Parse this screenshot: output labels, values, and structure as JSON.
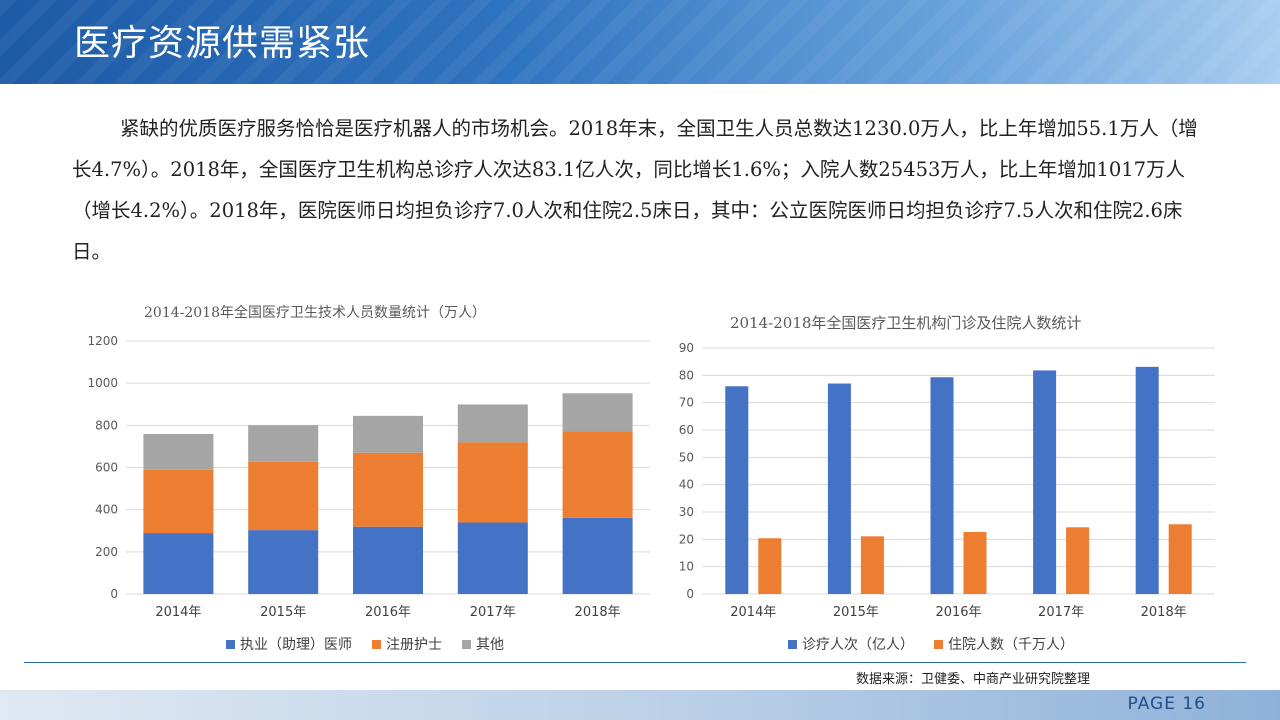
{
  "header": {
    "title": "医疗资源供需紧张"
  },
  "paragraph": "紧缺的优质医疗服务恰恰是医疗机器人的市场机会。2018年末，全国卫生人员总数达1230.0万人，比上年增加55.1万人（增长4.7%）。2018年，全国医疗卫生机构总诊疗人次达83.1亿人次，同比增长1.6%；入院人数25453万人，比上年增加1017万人（增长4.2%）。2018年，医院医师日均担负诊疗7.0人次和住院2.5床日，其中：公立医院医师日均担负诊疗7.5人次和住院2.6床日。",
  "chart_data": [
    {
      "type": "bar",
      "stacked": true,
      "title": "2014-2018年全国医疗卫生技术人员数量统计（万人）",
      "categories": [
        "2014年",
        "2015年",
        "2016年",
        "2017年",
        "2018年"
      ],
      "series": [
        {
          "name": "执业（助理）医师",
          "color": "#4472c4",
          "values": [
            289,
            303,
            319,
            339,
            361
          ]
        },
        {
          "name": "注册护士",
          "color": "#ed7d31",
          "values": [
            300,
            324,
            351,
            380,
            410
          ]
        },
        {
          "name": "其他",
          "color": "#a5a5a5",
          "values": [
            170,
            174,
            175,
            180,
            181
          ]
        }
      ],
      "yticks": [
        "0",
        "200",
        "400",
        "600",
        "800",
        "1000",
        "1200"
      ],
      "ylim": [
        0,
        1200
      ],
      "grid": true,
      "legend": "bottom"
    },
    {
      "type": "bar",
      "stacked": false,
      "title": "2014-2018年全国医疗卫生机构门诊及住院人数统计",
      "categories": [
        "2014年",
        "2015年",
        "2016年",
        "2017年",
        "2018年"
      ],
      "series": [
        {
          "name": "诊疗人次（亿人）",
          "color": "#4472c4",
          "values": [
            76.0,
            77.0,
            79.3,
            81.8,
            83.1
          ]
        },
        {
          "name": "住院人数（千万人）",
          "color": "#ed7d31",
          "values": [
            20.4,
            21.1,
            22.7,
            24.4,
            25.5
          ]
        }
      ],
      "yticks": [
        "0",
        "10",
        "20",
        "30",
        "40",
        "50",
        "60",
        "70",
        "80",
        "90"
      ],
      "ylim": [
        0,
        90
      ],
      "grid": true,
      "legend": "bottom"
    }
  ],
  "footer": {
    "source": "数据来源：卫健委、中商产业研究院整理",
    "page": "PAGE 16"
  }
}
